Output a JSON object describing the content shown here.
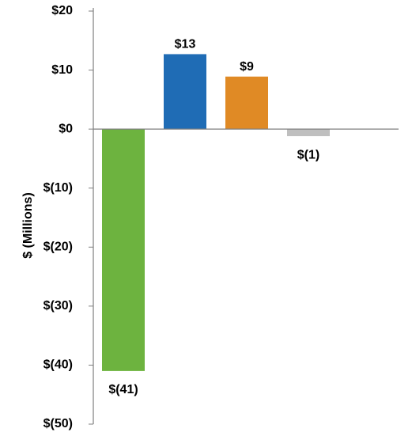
{
  "chart_data": {
    "type": "bar",
    "title": "",
    "xlabel": "",
    "ylabel": "$ (Millions)",
    "ylim": [
      -50,
      20
    ],
    "yticks": [
      20,
      10,
      0,
      -10,
      -20,
      -30,
      -40,
      -50
    ],
    "ytick_labels": [
      "$20",
      "$10",
      "$0",
      "$(10)",
      "$(20)",
      "$(30)",
      "$(40)",
      "$(50)"
    ],
    "grid": false,
    "legend": "none",
    "categories": [
      "",
      "",
      "",
      ""
    ],
    "values": [
      -41,
      12.7,
      8.9,
      -1.2
    ],
    "data_labels": [
      "$(41)",
      "$13",
      "$9",
      "$(1)"
    ],
    "colors": [
      "#6db33f",
      "#1f6cb5",
      "#e08a25",
      "#bfbfbf"
    ],
    "axis_color": "#7f7f7f"
  }
}
